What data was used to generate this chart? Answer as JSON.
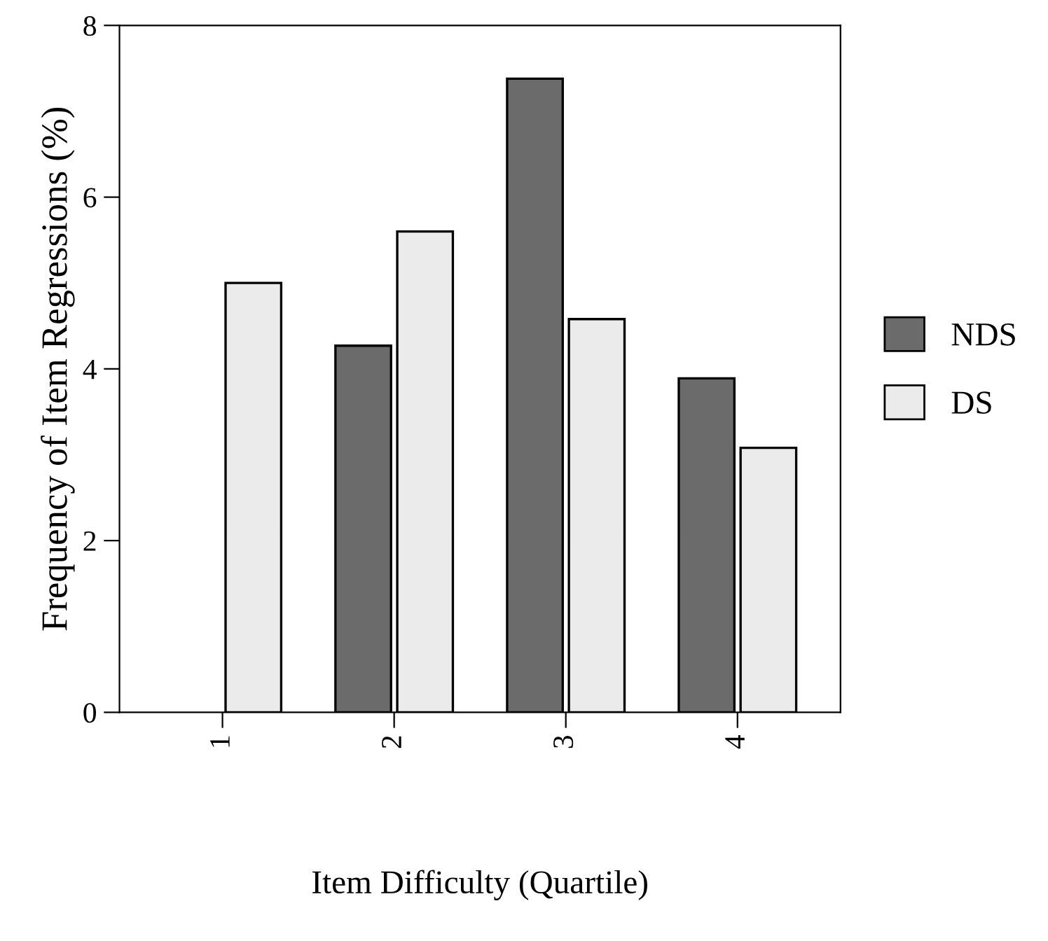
{
  "chart_data": {
    "type": "bar",
    "xlabel": "Item Difficulty (Quartile)",
    "ylabel": "Frequency of Item Regressions (%)",
    "categories": [
      "1",
      "2",
      "3",
      "4"
    ],
    "series": [
      {
        "name": "NDS",
        "color": "#6b6b6b",
        "values": [
          null,
          4.27,
          7.38,
          3.89
        ]
      },
      {
        "name": "DS",
        "color": "#ebebeb",
        "values": [
          5.0,
          5.6,
          4.58,
          3.08
        ]
      }
    ],
    "ylim": [
      0,
      8
    ],
    "yticks": [
      0,
      2,
      4,
      6,
      8
    ],
    "grid": false,
    "legend": "right"
  }
}
